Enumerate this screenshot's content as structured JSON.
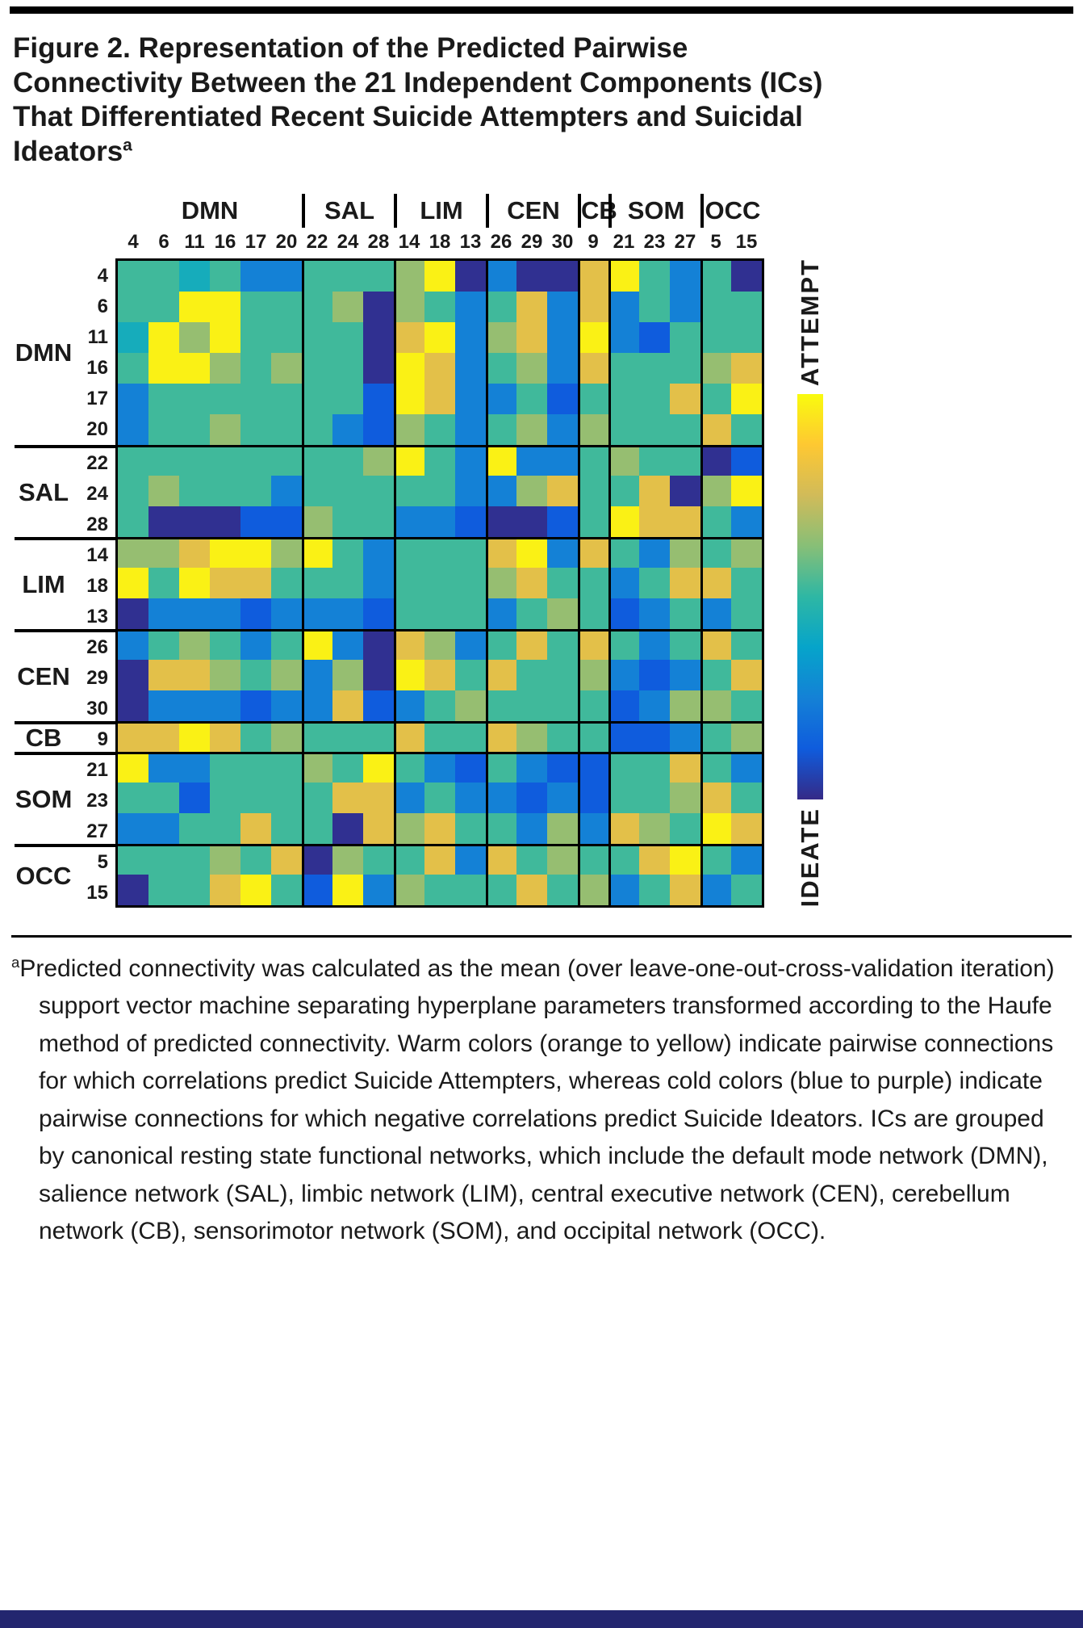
{
  "figure": {
    "title_lines": [
      "Figure 2. Representation of the Predicted Pairwise",
      "Connectivity Between the 21 Independent Components (ICs)",
      "That Differentiated Recent Suicide Attempters and Suicidal",
      "Ideators"
    ],
    "title_superscript": "a"
  },
  "colorbar": {
    "top_label": "ATTEMPT",
    "bottom_label": "IDEATE",
    "stops": [
      "#f9fb0e",
      "#fec832",
      "#d1bb59",
      "#87bf77",
      "#2eb7a4",
      "#06a4ca",
      "#1481d6",
      "#0f5cdd",
      "#352a87"
    ]
  },
  "rules": {
    "top_bar_color": "#000000",
    "bottom_bar_color": "#23266f"
  },
  "footnote": {
    "marker": "a",
    "text": "Predicted connectivity was calculated as the mean (over leave-one-out-cross-validation iteration) support vector machine separating hyperplane parameters transformed according to the Haufe method of predicted connectivity. Warm colors (orange to yellow) indicate pairwise connections for which correlations predict Suicide Attempters, whereas cold colors (blue to purple) indicate pairwise connections for which negative correlations predict Suicide Ideators. ICs are grouped by canonical resting state functional networks, which include the default mode network (DMN), salience network (SAL), limbic network (LIM), central executive network (CEN), cerebellum network (CB), sensorimotor network (SOM), and occipital network (OCC)."
  },
  "chart_data": {
    "type": "heatmap",
    "title": "Predicted pairwise connectivity between 21 ICs differentiating recent suicide attempters and suicidal ideators",
    "colormap": "parula",
    "vmin": -1,
    "vmax": 1,
    "legend": {
      "max": "ATTEMPT",
      "min": "IDEATE",
      "position": "right"
    },
    "groups": [
      {
        "name": "DMN",
        "ics": [
          4,
          6,
          11,
          16,
          17,
          20
        ]
      },
      {
        "name": "SAL",
        "ics": [
          22,
          24,
          28
        ]
      },
      {
        "name": "LIM",
        "ics": [
          14,
          18,
          13
        ]
      },
      {
        "name": "CEN",
        "ics": [
          26,
          29,
          30
        ]
      },
      {
        "name": "CB",
        "ics": [
          9
        ]
      },
      {
        "name": "SOM",
        "ics": [
          21,
          23,
          27
        ]
      },
      {
        "name": "OCC",
        "ics": [
          5,
          15
        ]
      }
    ],
    "labels": [
      4,
      6,
      11,
      16,
      17,
      20,
      22,
      24,
      28,
      14,
      18,
      13,
      26,
      29,
      30,
      9,
      21,
      23,
      27,
      5,
      15
    ],
    "values": [
      [
        0.05,
        0.05,
        -0.15,
        0.05,
        -0.5,
        -0.5,
        0.05,
        0.05,
        0.05,
        0.3,
        0.95,
        -0.97,
        -0.5,
        -0.97,
        -0.97,
        0.6,
        0.95,
        0.05,
        -0.5,
        0.05,
        -0.97
      ],
      [
        0.05,
        0.05,
        0.95,
        0.95,
        0.05,
        0.05,
        0.05,
        0.3,
        -0.97,
        0.3,
        0.05,
        -0.5,
        0.05,
        0.6,
        -0.5,
        0.6,
        -0.5,
        0.05,
        -0.5,
        0.05,
        0.05
      ],
      [
        -0.15,
        0.95,
        0.3,
        0.95,
        0.05,
        0.05,
        0.05,
        0.05,
        -0.97,
        0.6,
        0.95,
        -0.5,
        0.3,
        0.6,
        -0.5,
        0.95,
        -0.5,
        -0.75,
        0.05,
        0.05,
        0.05
      ],
      [
        0.05,
        0.95,
        0.95,
        0.3,
        0.05,
        0.3,
        0.05,
        0.05,
        -0.97,
        0.95,
        0.6,
        -0.5,
        0.05,
        0.3,
        -0.5,
        0.6,
        0.05,
        0.05,
        0.05,
        0.3,
        0.6
      ],
      [
        -0.5,
        0.05,
        0.05,
        0.05,
        0.05,
        0.05,
        0.05,
        0.05,
        -0.75,
        0.95,
        0.6,
        -0.5,
        -0.5,
        0.05,
        -0.75,
        0.05,
        0.05,
        0.05,
        0.6,
        0.05,
        0.95
      ],
      [
        -0.5,
        0.05,
        0.05,
        0.3,
        0.05,
        0.05,
        0.05,
        -0.5,
        -0.75,
        0.3,
        0.05,
        -0.5,
        0.05,
        0.3,
        -0.5,
        0.3,
        0.05,
        0.05,
        0.05,
        0.6,
        0.05
      ],
      [
        0.05,
        0.05,
        0.05,
        0.05,
        0.05,
        0.05,
        0.05,
        0.05,
        0.3,
        0.95,
        0.05,
        -0.5,
        0.95,
        -0.5,
        -0.5,
        0.05,
        0.3,
        0.05,
        0.05,
        -0.97,
        -0.75
      ],
      [
        0.05,
        0.3,
        0.05,
        0.05,
        0.05,
        -0.5,
        0.05,
        0.05,
        0.05,
        0.05,
        0.05,
        -0.5,
        -0.5,
        0.3,
        0.6,
        0.05,
        0.05,
        0.6,
        -0.97,
        0.3,
        0.95
      ],
      [
        0.05,
        -0.97,
        -0.97,
        -0.97,
        -0.75,
        -0.75,
        0.3,
        0.05,
        0.05,
        -0.5,
        -0.5,
        -0.75,
        -0.97,
        -0.97,
        -0.75,
        0.05,
        0.95,
        0.6,
        0.6,
        0.05,
        -0.5
      ],
      [
        0.3,
        0.3,
        0.6,
        0.95,
        0.95,
        0.3,
        0.95,
        0.05,
        -0.5,
        0.05,
        0.05,
        0.05,
        0.6,
        0.95,
        -0.5,
        0.6,
        0.05,
        -0.5,
        0.3,
        0.05,
        0.3
      ],
      [
        0.95,
        0.05,
        0.95,
        0.6,
        0.6,
        0.05,
        0.05,
        0.05,
        -0.5,
        0.05,
        0.05,
        0.05,
        0.3,
        0.6,
        0.05,
        0.05,
        -0.5,
        0.05,
        0.6,
        0.6,
        0.05
      ],
      [
        -0.97,
        -0.5,
        -0.5,
        -0.5,
        -0.75,
        -0.5,
        -0.5,
        -0.5,
        -0.75,
        0.05,
        0.05,
        0.05,
        -0.5,
        0.05,
        0.3,
        0.05,
        -0.75,
        -0.5,
        0.05,
        -0.5,
        0.05
      ],
      [
        -0.5,
        0.05,
        0.3,
        0.05,
        -0.5,
        0.05,
        0.95,
        -0.5,
        -0.97,
        0.6,
        0.3,
        -0.5,
        0.05,
        0.6,
        0.05,
        0.6,
        0.05,
        -0.5,
        0.05,
        0.6,
        0.05
      ],
      [
        -0.97,
        0.6,
        0.6,
        0.3,
        0.05,
        0.3,
        -0.5,
        0.3,
        -0.97,
        0.95,
        0.6,
        0.05,
        0.6,
        0.05,
        0.05,
        0.3,
        -0.5,
        -0.75,
        -0.5,
        0.05,
        0.6
      ],
      [
        -0.97,
        -0.5,
        -0.5,
        -0.5,
        -0.75,
        -0.5,
        -0.5,
        0.6,
        -0.75,
        -0.5,
        0.05,
        0.3,
        0.05,
        0.05,
        0.05,
        0.05,
        -0.75,
        -0.5,
        0.3,
        0.3,
        0.05
      ],
      [
        0.6,
        0.6,
        0.95,
        0.6,
        0.05,
        0.3,
        0.05,
        0.05,
        0.05,
        0.6,
        0.05,
        0.05,
        0.6,
        0.3,
        0.05,
        0.05,
        -0.75,
        -0.75,
        -0.5,
        0.05,
        0.3
      ],
      [
        0.95,
        -0.5,
        -0.5,
        0.05,
        0.05,
        0.05,
        0.3,
        0.05,
        0.95,
        0.05,
        -0.5,
        -0.75,
        0.05,
        -0.5,
        -0.75,
        -0.75,
        0.05,
        0.05,
        0.6,
        0.05,
        -0.5
      ],
      [
        0.05,
        0.05,
        -0.75,
        0.05,
        0.05,
        0.05,
        0.05,
        0.6,
        0.6,
        -0.5,
        0.05,
        -0.5,
        -0.5,
        -0.75,
        -0.5,
        -0.75,
        0.05,
        0.05,
        0.3,
        0.6,
        0.05
      ],
      [
        -0.5,
        -0.5,
        0.05,
        0.05,
        0.6,
        0.05,
        0.05,
        -0.97,
        0.6,
        0.3,
        0.6,
        0.05,
        0.05,
        -0.5,
        0.3,
        -0.5,
        0.6,
        0.3,
        0.05,
        0.95,
        0.6
      ],
      [
        0.05,
        0.05,
        0.05,
        0.3,
        0.05,
        0.6,
        -0.97,
        0.3,
        0.05,
        0.05,
        0.6,
        -0.5,
        0.6,
        0.05,
        0.3,
        0.05,
        0.05,
        0.6,
        0.95,
        0.05,
        -0.5
      ],
      [
        -0.97,
        0.05,
        0.05,
        0.6,
        0.95,
        0.05,
        -0.75,
        0.95,
        -0.5,
        0.3,
        0.05,
        0.05,
        0.05,
        0.6,
        0.05,
        0.3,
        -0.5,
        0.05,
        0.6,
        -0.5,
        0.05
      ]
    ]
  }
}
